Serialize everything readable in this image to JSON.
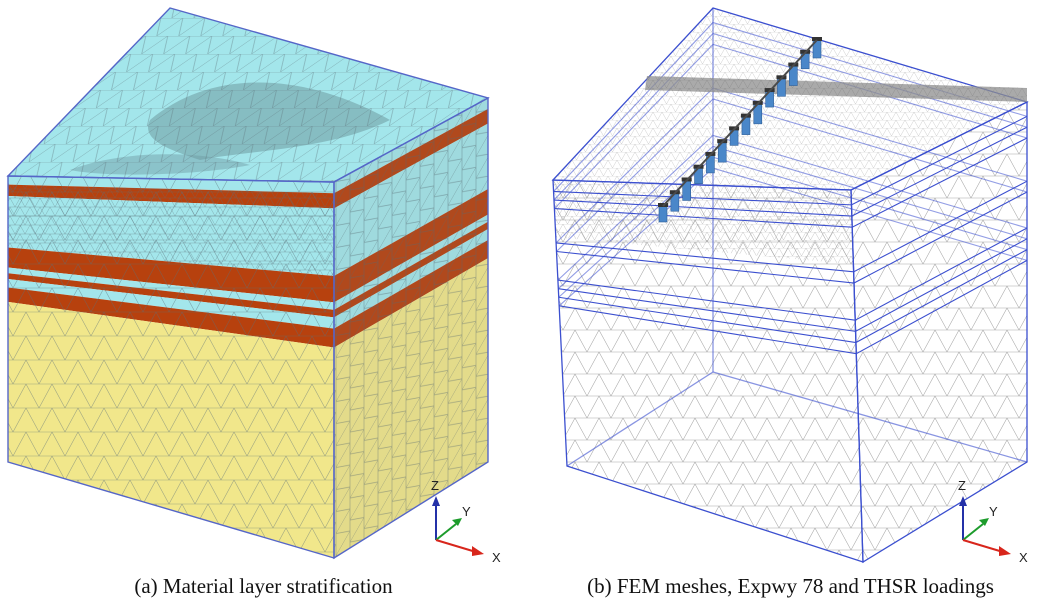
{
  "panels": [
    {
      "caption": "(a) Material layer stratification",
      "style": "solid",
      "colors": {
        "clay": "#a3e6eb",
        "sand": "#b7410e",
        "rock": "#f1e78b",
        "edge": "#5566c8",
        "mesh": "#5b6f78"
      },
      "axes": {
        "z": "Z",
        "y": "Y",
        "x": "X"
      }
    },
    {
      "caption": "(b) FEM meshes, Expwy 78 and THSR loadings",
      "style": "wireframe",
      "colors": {
        "mesh": "#8a8a8a",
        "edge": "#3b4fcf",
        "pier": "#4a87c9",
        "deck": "#8d8d8d"
      },
      "axes": {
        "z": "Z",
        "y": "Y",
        "x": "X"
      }
    }
  ],
  "axis_colors": {
    "z": "#2431a8",
    "y": "#1d9c2c",
    "x": "#d8261c"
  }
}
